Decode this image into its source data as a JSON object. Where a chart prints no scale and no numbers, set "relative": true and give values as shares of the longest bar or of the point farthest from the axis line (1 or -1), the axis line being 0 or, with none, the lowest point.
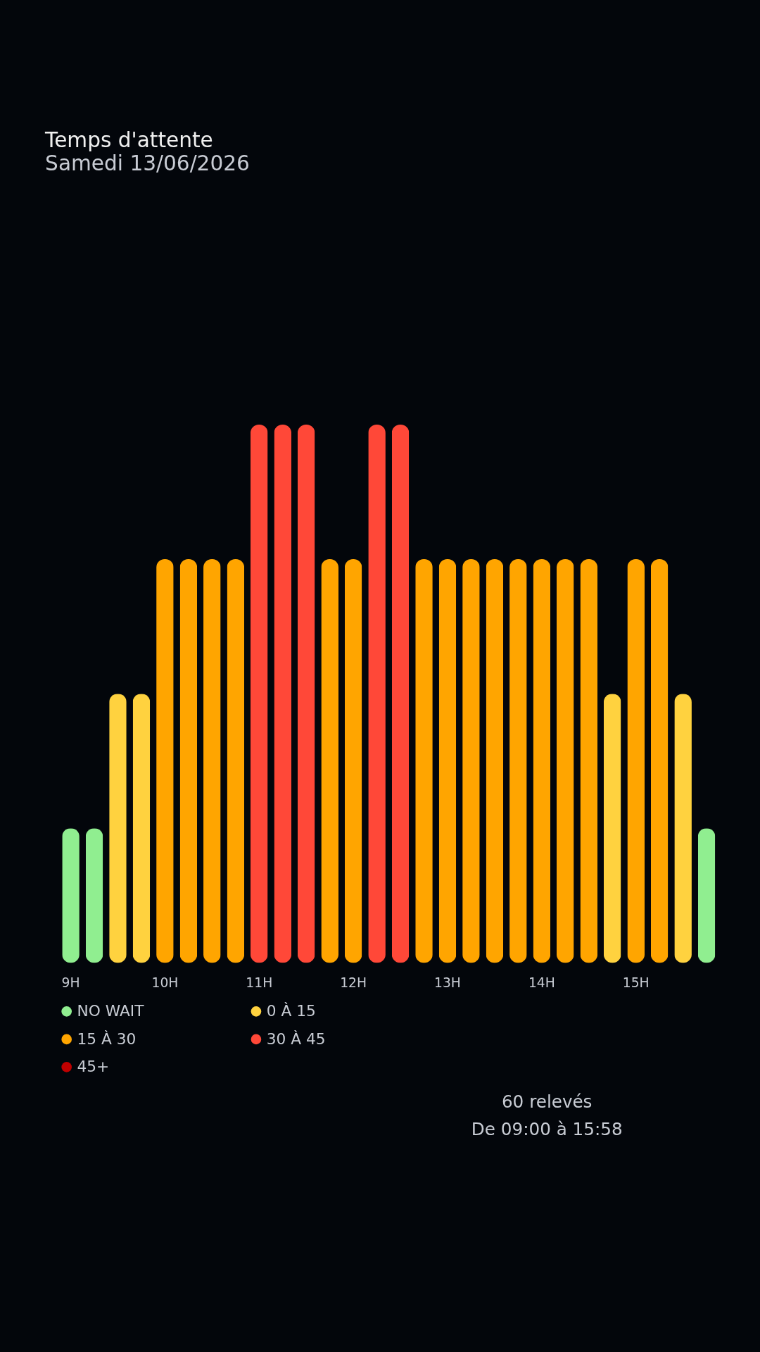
{
  "chart_data": {
    "type": "bar",
    "title": "Temps d'attente",
    "subtitle": "Samedi 13/06/2026",
    "categories": [
      "9H",
      null,
      null,
      null,
      "10H",
      null,
      null,
      null,
      "11H",
      null,
      null,
      null,
      "12H",
      null,
      null,
      null,
      "13H",
      null,
      null,
      null,
      "14H",
      null,
      null,
      null,
      "15H",
      null,
      null,
      null
    ],
    "relative": true,
    "stacked": true,
    "legend": "bottom",
    "grid": false,
    "tick_labels": "x",
    "series": [
      {
        "name": "NO WAIT",
        "color": "#90ee90",
        "values": [
          0.25,
          0.25,
          null,
          null,
          null,
          null,
          null,
          null,
          null,
          null,
          null,
          null,
          null,
          null,
          null,
          null,
          null,
          null,
          null,
          null,
          null,
          null,
          null,
          null,
          null,
          null,
          null,
          0.25
        ]
      },
      {
        "name": "0 À 15",
        "color": "#ffd23f",
        "values": [
          null,
          null,
          0.5,
          0.5,
          null,
          null,
          null,
          null,
          null,
          null,
          null,
          null,
          null,
          null,
          null,
          null,
          null,
          null,
          null,
          null,
          null,
          null,
          null,
          0.5,
          null,
          null,
          0.5,
          null
        ]
      },
      {
        "name": "15 À 30",
        "color": "#ffa500",
        "values": [
          null,
          null,
          null,
          null,
          0.75,
          0.75,
          0.75,
          0.75,
          null,
          null,
          null,
          0.75,
          0.75,
          null,
          null,
          0.75,
          0.75,
          0.75,
          0.75,
          0.75,
          0.75,
          0.75,
          0.75,
          null,
          0.75,
          0.75,
          null,
          null
        ]
      },
      {
        "name": "30 À 45",
        "color": "#ff4838",
        "values": [
          null,
          null,
          null,
          null,
          null,
          null,
          null,
          null,
          1,
          1,
          1,
          null,
          null,
          1,
          1,
          null,
          null,
          null,
          null,
          null,
          null,
          null,
          null,
          null,
          null,
          null,
          null,
          null
        ]
      },
      {
        "name": "45+",
        "color": "#c00000",
        "values": [
          null,
          null,
          null,
          null,
          null,
          null,
          null,
          null,
          null,
          null,
          null,
          null,
          null,
          null,
          null,
          null,
          null,
          null,
          null,
          null,
          null,
          null,
          null,
          null,
          null,
          null,
          null,
          null
        ]
      }
    ],
    "annotations": [
      "60 relevés",
      "De 09:00 à 15:58"
    ]
  }
}
